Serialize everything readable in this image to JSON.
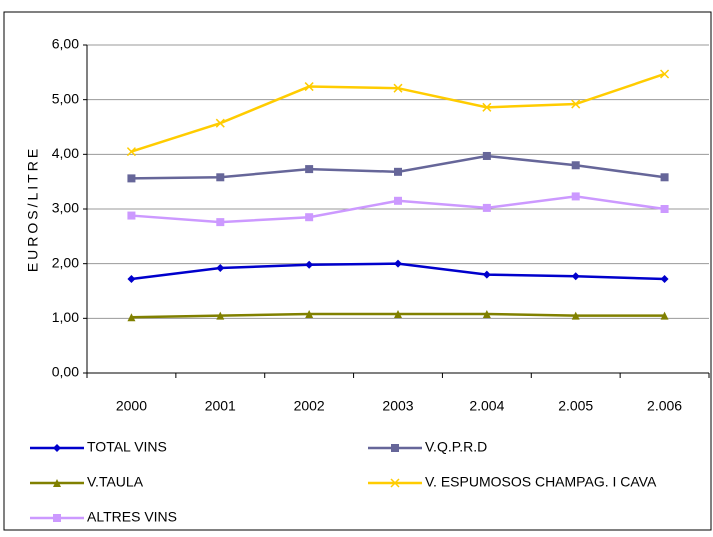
{
  "chart_data": {
    "type": "line",
    "y_label": "EUROS/LITRE",
    "categories": [
      "2000",
      "2001",
      "2002",
      "2003",
      "2.004",
      "2.005",
      "2.006"
    ],
    "series": [
      {
        "name": "TOTAL VINS",
        "color": "#0000cc",
        "marker": "diamond",
        "values": [
          1.72,
          1.92,
          1.98,
          2.0,
          1.8,
          1.77,
          1.72
        ]
      },
      {
        "name": "V.Q.P.R.D",
        "color": "#666699",
        "marker": "square",
        "values": [
          3.56,
          3.58,
          3.73,
          3.68,
          3.97,
          3.8,
          3.58
        ]
      },
      {
        "name": "V.TAULA",
        "color": "#808000",
        "marker": "triangle",
        "values": [
          1.02,
          1.05,
          1.08,
          1.08,
          1.08,
          1.05,
          1.05
        ]
      },
      {
        "name": "V. ESPUMOSOS CHAMPAG. I CAVA",
        "color": "#ffcc00",
        "marker": "x",
        "values": [
          4.05,
          4.57,
          5.24,
          5.21,
          4.86,
          4.92,
          5.47
        ]
      },
      {
        "name": "ALTRES VINS",
        "color": "#cc99ff",
        "marker": "square",
        "values": [
          2.88,
          2.76,
          2.85,
          3.15,
          3.02,
          3.23,
          3.0
        ]
      }
    ],
    "ylim": [
      0,
      6
    ],
    "yticks": [
      {
        "value": 0,
        "label": "0,00"
      },
      {
        "value": 1,
        "label": "1,00"
      },
      {
        "value": 2,
        "label": "2,00"
      },
      {
        "value": 3,
        "label": "3,00"
      },
      {
        "value": 4,
        "label": "4,00"
      },
      {
        "value": 5,
        "label": "5,00"
      },
      {
        "value": 6,
        "label": "6,00"
      }
    ],
    "grid": true
  }
}
